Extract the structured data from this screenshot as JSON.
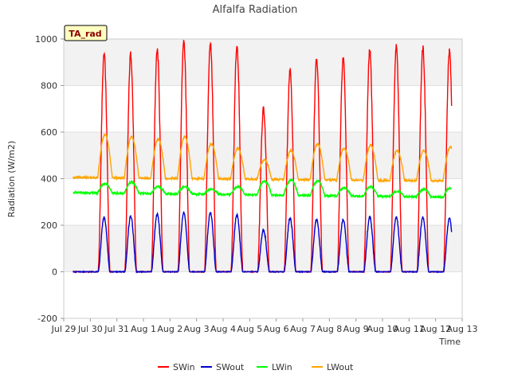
{
  "chart_data": {
    "type": "line",
    "title": "Alfalfa Radiation",
    "xlabel": "Time",
    "ylabel": "Radiation (W/m2)",
    "ylim": [
      -200,
      1000
    ],
    "yticks": [
      -200,
      0,
      200,
      400,
      600,
      800,
      1000
    ],
    "xlim": [
      0,
      15
    ],
    "xtick_labels": [
      "Jul 29",
      "Jul 30",
      "Jul 31",
      "Aug 1",
      "Aug 2",
      "Aug 3",
      "Aug 4",
      "Aug 5",
      "Aug 6",
      "Aug 7",
      "Aug 8",
      "Aug 9",
      "Aug 10",
      "Aug 11",
      "Aug 12",
      "Aug 13"
    ],
    "grid": "horizontal bands",
    "legend_position": "bottom-center",
    "annotation": "TA_rad",
    "days": [
      "Jul 30",
      "Jul 31",
      "Aug 1",
      "Aug 2",
      "Aug 3",
      "Aug 4",
      "Aug 5",
      "Aug 6",
      "Aug 7",
      "Aug 8",
      "Aug 9",
      "Aug 10",
      "Aug 11",
      "Aug 12"
    ],
    "series": [
      {
        "name": "SWin",
        "color": "#ff0000",
        "night": 0,
        "daily_peak": [
          935,
          935,
          950,
          990,
          985,
          970,
          700,
          870,
          910,
          915,
          950,
          965,
          965,
          950
        ]
      },
      {
        "name": "SWout",
        "color": "#0000cc",
        "night": 0,
        "daily_peak": [
          235,
          240,
          245,
          255,
          255,
          245,
          180,
          230,
          225,
          225,
          235,
          235,
          235,
          230
        ]
      },
      {
        "name": "LWin",
        "color": "#00ff00",
        "night_start": 340,
        "night_end": 320,
        "daily_peak": [
          380,
          385,
          365,
          365,
          355,
          365,
          390,
          395,
          390,
          360,
          365,
          345,
          355,
          360
        ]
      },
      {
        "name": "LWout",
        "color": "#ffa500",
        "night_start": 405,
        "night_end": 390,
        "daily_peak": [
          590,
          580,
          570,
          580,
          550,
          530,
          480,
          520,
          550,
          530,
          545,
          520,
          520,
          535
        ]
      }
    ]
  }
}
